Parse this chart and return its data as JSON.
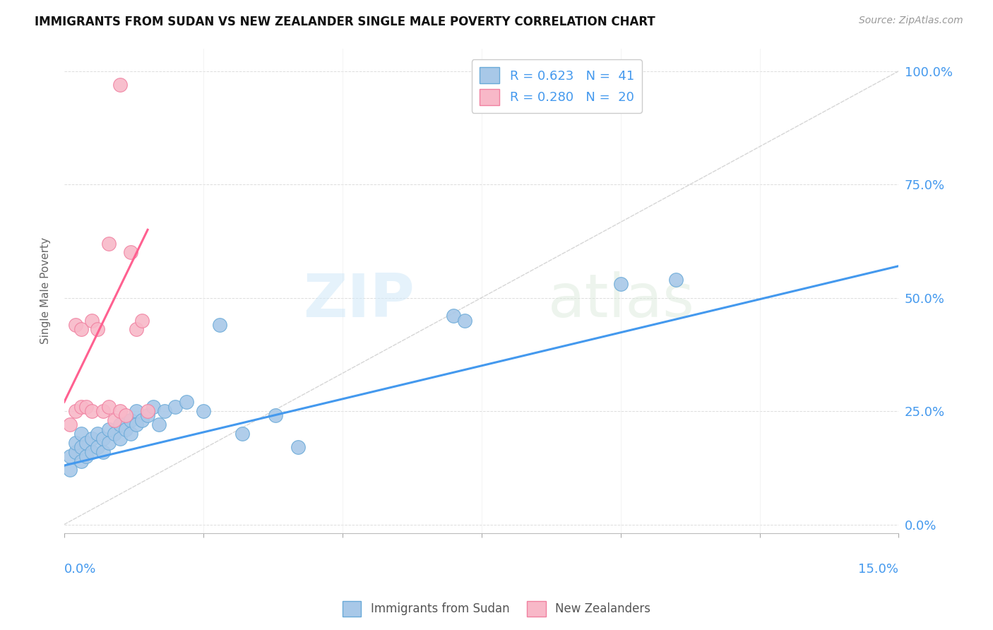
{
  "title": "IMMIGRANTS FROM SUDAN VS NEW ZEALANDER SINGLE MALE POVERTY CORRELATION CHART",
  "source": "Source: ZipAtlas.com",
  "ylabel": "Single Male Poverty",
  "ytick_labels": [
    "0.0%",
    "25.0%",
    "50.0%",
    "75.0%",
    "100.0%"
  ],
  "ytick_vals": [
    0.0,
    0.25,
    0.5,
    0.75,
    1.0
  ],
  "xtick_vals": [
    0.0,
    0.025,
    0.05,
    0.075,
    0.1,
    0.125,
    0.15
  ],
  "xlim": [
    0.0,
    0.15
  ],
  "ylim": [
    -0.02,
    1.05
  ],
  "legend_blue_label": "R = 0.623   N =  41",
  "legend_pink_label": "R = 0.280   N =  20",
  "legend_bottom_blue": "Immigrants from Sudan",
  "legend_bottom_pink": "New Zealanders",
  "blue_color": "#a8c8e8",
  "pink_color": "#f8b8c8",
  "blue_edge_color": "#6aaad8",
  "pink_edge_color": "#f080a0",
  "blue_line_color": "#4499ee",
  "pink_line_color": "#ff6090",
  "diag_line_color": "#cccccc",
  "watermark_zip": "ZIP",
  "watermark_atlas": "atlas",
  "blue_scatter_x": [
    0.001,
    0.001,
    0.002,
    0.002,
    0.003,
    0.003,
    0.003,
    0.004,
    0.004,
    0.005,
    0.005,
    0.006,
    0.006,
    0.007,
    0.007,
    0.008,
    0.008,
    0.009,
    0.01,
    0.01,
    0.011,
    0.012,
    0.012,
    0.013,
    0.013,
    0.014,
    0.015,
    0.016,
    0.017,
    0.018,
    0.02,
    0.022,
    0.025,
    0.028,
    0.032,
    0.038,
    0.042,
    0.07,
    0.072,
    0.1,
    0.11
  ],
  "blue_scatter_y": [
    0.12,
    0.15,
    0.16,
    0.18,
    0.14,
    0.17,
    0.2,
    0.15,
    0.18,
    0.16,
    0.19,
    0.17,
    0.2,
    0.16,
    0.19,
    0.18,
    0.21,
    0.2,
    0.19,
    0.22,
    0.21,
    0.23,
    0.2,
    0.25,
    0.22,
    0.23,
    0.24,
    0.26,
    0.22,
    0.25,
    0.26,
    0.27,
    0.25,
    0.44,
    0.2,
    0.24,
    0.17,
    0.46,
    0.45,
    0.53,
    0.54
  ],
  "pink_scatter_x": [
    0.001,
    0.002,
    0.002,
    0.003,
    0.003,
    0.004,
    0.005,
    0.005,
    0.006,
    0.007,
    0.008,
    0.008,
    0.009,
    0.01,
    0.011,
    0.012,
    0.013,
    0.014,
    0.015,
    0.01
  ],
  "pink_scatter_y": [
    0.22,
    0.25,
    0.44,
    0.26,
    0.43,
    0.26,
    0.25,
    0.45,
    0.43,
    0.25,
    0.26,
    0.62,
    0.23,
    0.25,
    0.24,
    0.6,
    0.43,
    0.45,
    0.25,
    0.97
  ],
  "blue_line_x": [
    0.0,
    0.15
  ],
  "blue_line_y": [
    0.13,
    0.57
  ],
  "pink_line_x": [
    0.0,
    0.015
  ],
  "pink_line_y": [
    0.27,
    0.65
  ]
}
